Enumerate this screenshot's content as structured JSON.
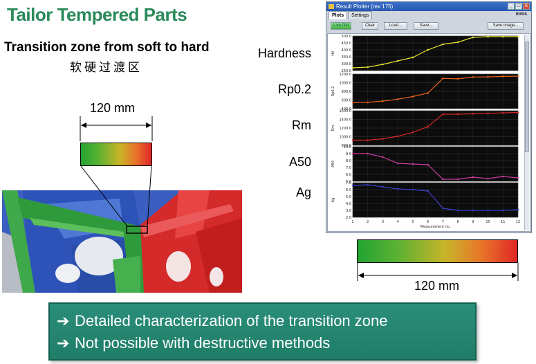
{
  "title": "Tailor Tempered Parts",
  "subtitle": "Transition zone from soft to hard",
  "subtitle_cn": "软硬过渡区",
  "left_dimension": "120 mm",
  "right_dimension": "120 mm",
  "row_labels": [
    "Hardness",
    "Rp0.2",
    "Rm",
    "A50",
    "Ag"
  ],
  "window": {
    "title": "Result Plotter  (rev 175)",
    "controls": [
      "_",
      "□",
      "X"
    ],
    "tabs": [
      "Plots",
      "Settings"
    ],
    "brand": "mms",
    "buttons": {
      "live": "Live Old",
      "clear": "Clear",
      "load": "Load...",
      "save": "Save...",
      "save_image": "Save image..."
    },
    "x_axis_label": "Measurement no."
  },
  "chart_data": {
    "type": "line",
    "x": [
      1,
      2,
      3,
      4,
      5,
      6,
      7,
      8,
      9,
      10,
      11,
      12
    ],
    "xlabel": "Measurement no.",
    "panels": [
      {
        "name": "Hardness",
        "ylabel": "HV",
        "color": "#e8e030",
        "ylim": [
          250,
          500
        ],
        "yticks": [
          250,
          300,
          350,
          400,
          450,
          500
        ],
        "values": [
          270,
          275,
          295,
          320,
          345,
          400,
          440,
          455,
          490,
          495,
          495,
          495
        ]
      },
      {
        "name": "Rp0.2",
        "ylabel": "Rp0.2",
        "color": "#e8641e",
        "ylim": [
          400,
          1200
        ],
        "yticks": [
          400,
          600,
          800,
          1000,
          1200
        ],
        "values": [
          540,
          545,
          575,
          620,
          680,
          760,
          1100,
          1090,
          1130,
          1135,
          1145,
          1150
        ]
      },
      {
        "name": "Rm",
        "ylabel": "Rm",
        "color": "#d82828",
        "ylim": [
          800,
          1600
        ],
        "yticks": [
          800,
          1000,
          1200,
          1400,
          1600
        ],
        "values": [
          920,
          920,
          950,
          1010,
          1100,
          1230,
          1520,
          1520,
          1530,
          1540,
          1550,
          1560
        ]
      },
      {
        "name": "A50",
        "ylabel": "A50",
        "color": "#c83ca0",
        "ylim": [
          5,
          10
        ],
        "yticks": [
          5,
          6,
          7,
          8,
          9,
          10
        ],
        "values": [
          9.0,
          9.0,
          8.5,
          7.6,
          7.5,
          7.4,
          5.3,
          5.3,
          5.6,
          5.4,
          5.7,
          5.5
        ]
      },
      {
        "name": "Ag",
        "ylabel": "Ag",
        "color": "#3c40c8",
        "ylim": [
          2,
          7
        ],
        "yticks": [
          2.0,
          3.0,
          4.0,
          5.0,
          6.0,
          7.0
        ],
        "values": [
          6.6,
          6.7,
          6.4,
          6.1,
          6.0,
          5.8,
          3.3,
          3.0,
          3.0,
          3.0,
          3.0,
          3.1
        ]
      }
    ]
  },
  "banner": {
    "arrow": "➔",
    "lines": [
      "Detailed characterization of the transition zone",
      "Not possible with destructive methods"
    ]
  }
}
